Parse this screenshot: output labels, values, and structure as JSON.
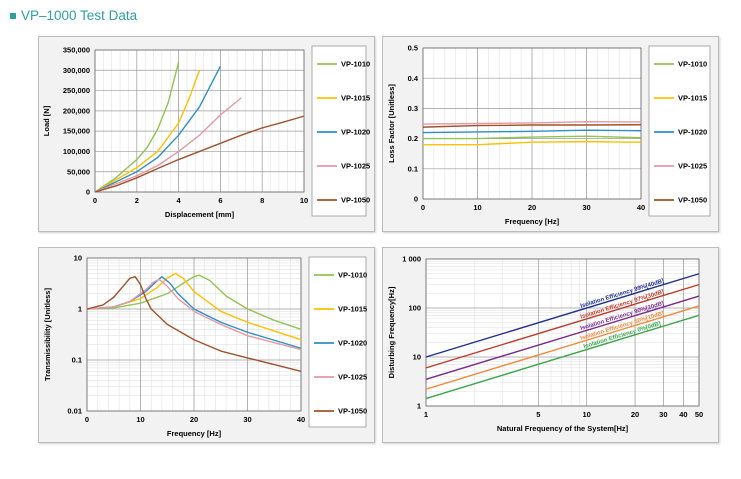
{
  "page": {
    "title": "VP–1000 Test Data"
  },
  "colors": {
    "VP-1010": "#92c353",
    "VP-1015": "#ffc000",
    "VP-1020": "#2e8fc8",
    "VP-1025": "#e49aa4",
    "VP-1050": "#a0522d"
  },
  "chart_data": [
    {
      "type": "line",
      "title": "",
      "xlabel": "Displacement [mm]",
      "ylabel": "Load [N]",
      "xlim": [
        0,
        10
      ],
      "ylim": [
        0,
        350000
      ],
      "xticks": [
        "0",
        "2",
        "4",
        "6",
        "8",
        "10"
      ],
      "yticks": [
        "0",
        "50,000",
        "100,000",
        "150,000",
        "200,000",
        "250,000",
        "300,000",
        "350,000"
      ],
      "grid": true,
      "legend_position": "right",
      "series": [
        {
          "name": "VP-1010",
          "x": [
            0,
            1,
            2,
            2.5,
            3,
            3.5,
            4
          ],
          "y": [
            0,
            35000,
            80000,
            110000,
            155000,
            220000,
            320000
          ]
        },
        {
          "name": "VP-1015",
          "x": [
            0,
            1,
            2,
            3,
            4,
            4.5,
            5
          ],
          "y": [
            0,
            30000,
            60000,
            100000,
            170000,
            230000,
            300000
          ]
        },
        {
          "name": "VP-1020",
          "x": [
            0,
            1,
            2,
            3,
            4,
            5,
            6
          ],
          "y": [
            0,
            25000,
            50000,
            85000,
            140000,
            210000,
            310000
          ]
        },
        {
          "name": "VP-1025",
          "x": [
            0,
            1,
            2,
            3,
            4,
            5,
            6,
            7
          ],
          "y": [
            0,
            20000,
            40000,
            65000,
            100000,
            140000,
            190000,
            232000
          ]
        },
        {
          "name": "VP-1050",
          "x": [
            0,
            1,
            2,
            3,
            4,
            5,
            6,
            7,
            8,
            9,
            10
          ],
          "y": [
            0,
            15000,
            35000,
            58000,
            80000,
            100000,
            120000,
            140000,
            158000,
            172000,
            187000
          ]
        }
      ]
    },
    {
      "type": "line",
      "title": "",
      "xlabel": "Frequency [Hz]",
      "ylabel": "Loss Factor [Unitless]",
      "xlim": [
        0,
        40
      ],
      "ylim": [
        0,
        0.5
      ],
      "xticks": [
        "0",
        "10",
        "20",
        "30",
        "40"
      ],
      "yticks": [
        "0",
        "0.1",
        "0.2",
        "0.3",
        "0.4",
        "0.5"
      ],
      "grid": true,
      "legend_position": "right",
      "series": [
        {
          "name": "VP-1010",
          "x": [
            0,
            10,
            20,
            30,
            40
          ],
          "y": [
            0.2,
            0.2,
            0.205,
            0.208,
            0.203
          ]
        },
        {
          "name": "VP-1015",
          "x": [
            0,
            10,
            20,
            30,
            40
          ],
          "y": [
            0.18,
            0.18,
            0.188,
            0.19,
            0.188
          ]
        },
        {
          "name": "VP-1020",
          "x": [
            0,
            10,
            20,
            30,
            40
          ],
          "y": [
            0.22,
            0.222,
            0.224,
            0.228,
            0.226
          ]
        },
        {
          "name": "VP-1025",
          "x": [
            0,
            10,
            20,
            30,
            40
          ],
          "y": [
            0.248,
            0.25,
            0.252,
            0.256,
            0.255
          ]
        },
        {
          "name": "VP-1050",
          "x": [
            0,
            10,
            20,
            30,
            40
          ],
          "y": [
            0.238,
            0.243,
            0.245,
            0.245,
            0.246
          ]
        }
      ]
    },
    {
      "type": "line",
      "title": "",
      "xlabel": "Frequency [Hz]",
      "ylabel": "Transmissibility [Unitless]",
      "xlim": [
        0,
        40
      ],
      "yscale": "log",
      "ylim": [
        0.01,
        10
      ],
      "xticks": [
        "0",
        "10",
        "20",
        "30",
        "40"
      ],
      "yticks": [
        "0.01",
        "0.1",
        "1",
        "10"
      ],
      "grid": true,
      "legend_position": "right",
      "series": [
        {
          "name": "VP-1010",
          "x": [
            0,
            5,
            10,
            15,
            18,
            20,
            21,
            23,
            26,
            30,
            35,
            40
          ],
          "y": [
            1,
            1.05,
            1.3,
            2.0,
            3.2,
            4.3,
            4.6,
            3.6,
            1.8,
            1.0,
            0.6,
            0.4
          ]
        },
        {
          "name": "VP-1015",
          "x": [
            0,
            5,
            10,
            13,
            15,
            16.5,
            18,
            20,
            25,
            30,
            40
          ],
          "y": [
            1,
            1.1,
            1.6,
            2.6,
            4.0,
            5.0,
            4.0,
            2.2,
            0.9,
            0.55,
            0.25
          ]
        },
        {
          "name": "VP-1020",
          "x": [
            0,
            5,
            8,
            11,
            13,
            14,
            15.5,
            17,
            20,
            25,
            30,
            40
          ],
          "y": [
            1,
            1.1,
            1.4,
            2.2,
            3.5,
            4.3,
            3.2,
            2.0,
            1.0,
            0.55,
            0.35,
            0.17
          ]
        },
        {
          "name": "VP-1025",
          "x": [
            0,
            5,
            8,
            11,
            12.5,
            13.5,
            15,
            17,
            20,
            25,
            30,
            40
          ],
          "y": [
            1,
            1.1,
            1.4,
            2.4,
            3.4,
            3.8,
            2.8,
            1.6,
            0.9,
            0.5,
            0.3,
            0.16
          ]
        },
        {
          "name": "VP-1050",
          "x": [
            0,
            3,
            5,
            7,
            8,
            9,
            10,
            11,
            12,
            15,
            20,
            25,
            30,
            40
          ],
          "y": [
            1,
            1.2,
            1.7,
            3.0,
            4.0,
            4.3,
            3.0,
            1.6,
            1.0,
            0.5,
            0.25,
            0.15,
            0.11,
            0.06
          ]
        }
      ]
    },
    {
      "type": "line",
      "title": "",
      "xlabel": "Natural Frequency of the System[Hz]",
      "ylabel": "Disturbing Frequency[Hz]",
      "xscale": "log",
      "yscale": "log",
      "xlim": [
        1,
        50
      ],
      "ylim": [
        1,
        1000
      ],
      "xticks": [
        "1",
        "5",
        "10",
        "20",
        "30",
        "40",
        "50"
      ],
      "yticks": [
        "1",
        "10",
        "100",
        "1 000"
      ],
      "grid": true,
      "series": [
        {
          "name": "Isolation Efficiency 99%[40dB]",
          "color": "#1f2f8f",
          "x": [
            1,
            50
          ],
          "y": [
            10,
            500
          ]
        },
        {
          "name": "Isolation Efficiency 97%[30dB]",
          "color": "#c0392b",
          "x": [
            1,
            50
          ],
          "y": [
            6,
            300
          ]
        },
        {
          "name": "Isolation Efficiency 90%[20dB]",
          "color": "#7b2a8c",
          "x": [
            1,
            50
          ],
          "y": [
            3.5,
            175
          ]
        },
        {
          "name": "Isolation Efficiency 60%[10dB]",
          "color": "#f28a3c",
          "x": [
            1,
            50
          ],
          "y": [
            2.2,
            110
          ]
        },
        {
          "name": "Isolation Efficiency 0%[0dB]",
          "color": "#3aa64a",
          "x": [
            1,
            50
          ],
          "y": [
            1.42,
            71
          ]
        }
      ]
    }
  ]
}
